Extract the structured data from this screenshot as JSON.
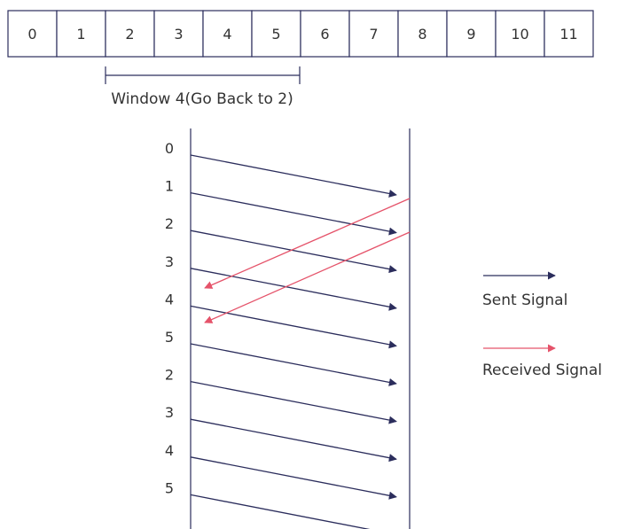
{
  "frames": [
    "0",
    "1",
    "2",
    "3",
    "4",
    "5",
    "6",
    "7",
    "8",
    "9",
    "10",
    "11"
  ],
  "window_label": "Window 4(Go Back to 2)",
  "sequence": [
    "0",
    "1",
    "2",
    "3",
    "4",
    "5",
    "2",
    "3",
    "4",
    "5"
  ],
  "legend": {
    "sent": "Sent Signal",
    "received": "Received Signal"
  },
  "colors": {
    "sent": "#2b2d5c",
    "received": "#e5536a",
    "cell_border": "#2b2d5c"
  }
}
